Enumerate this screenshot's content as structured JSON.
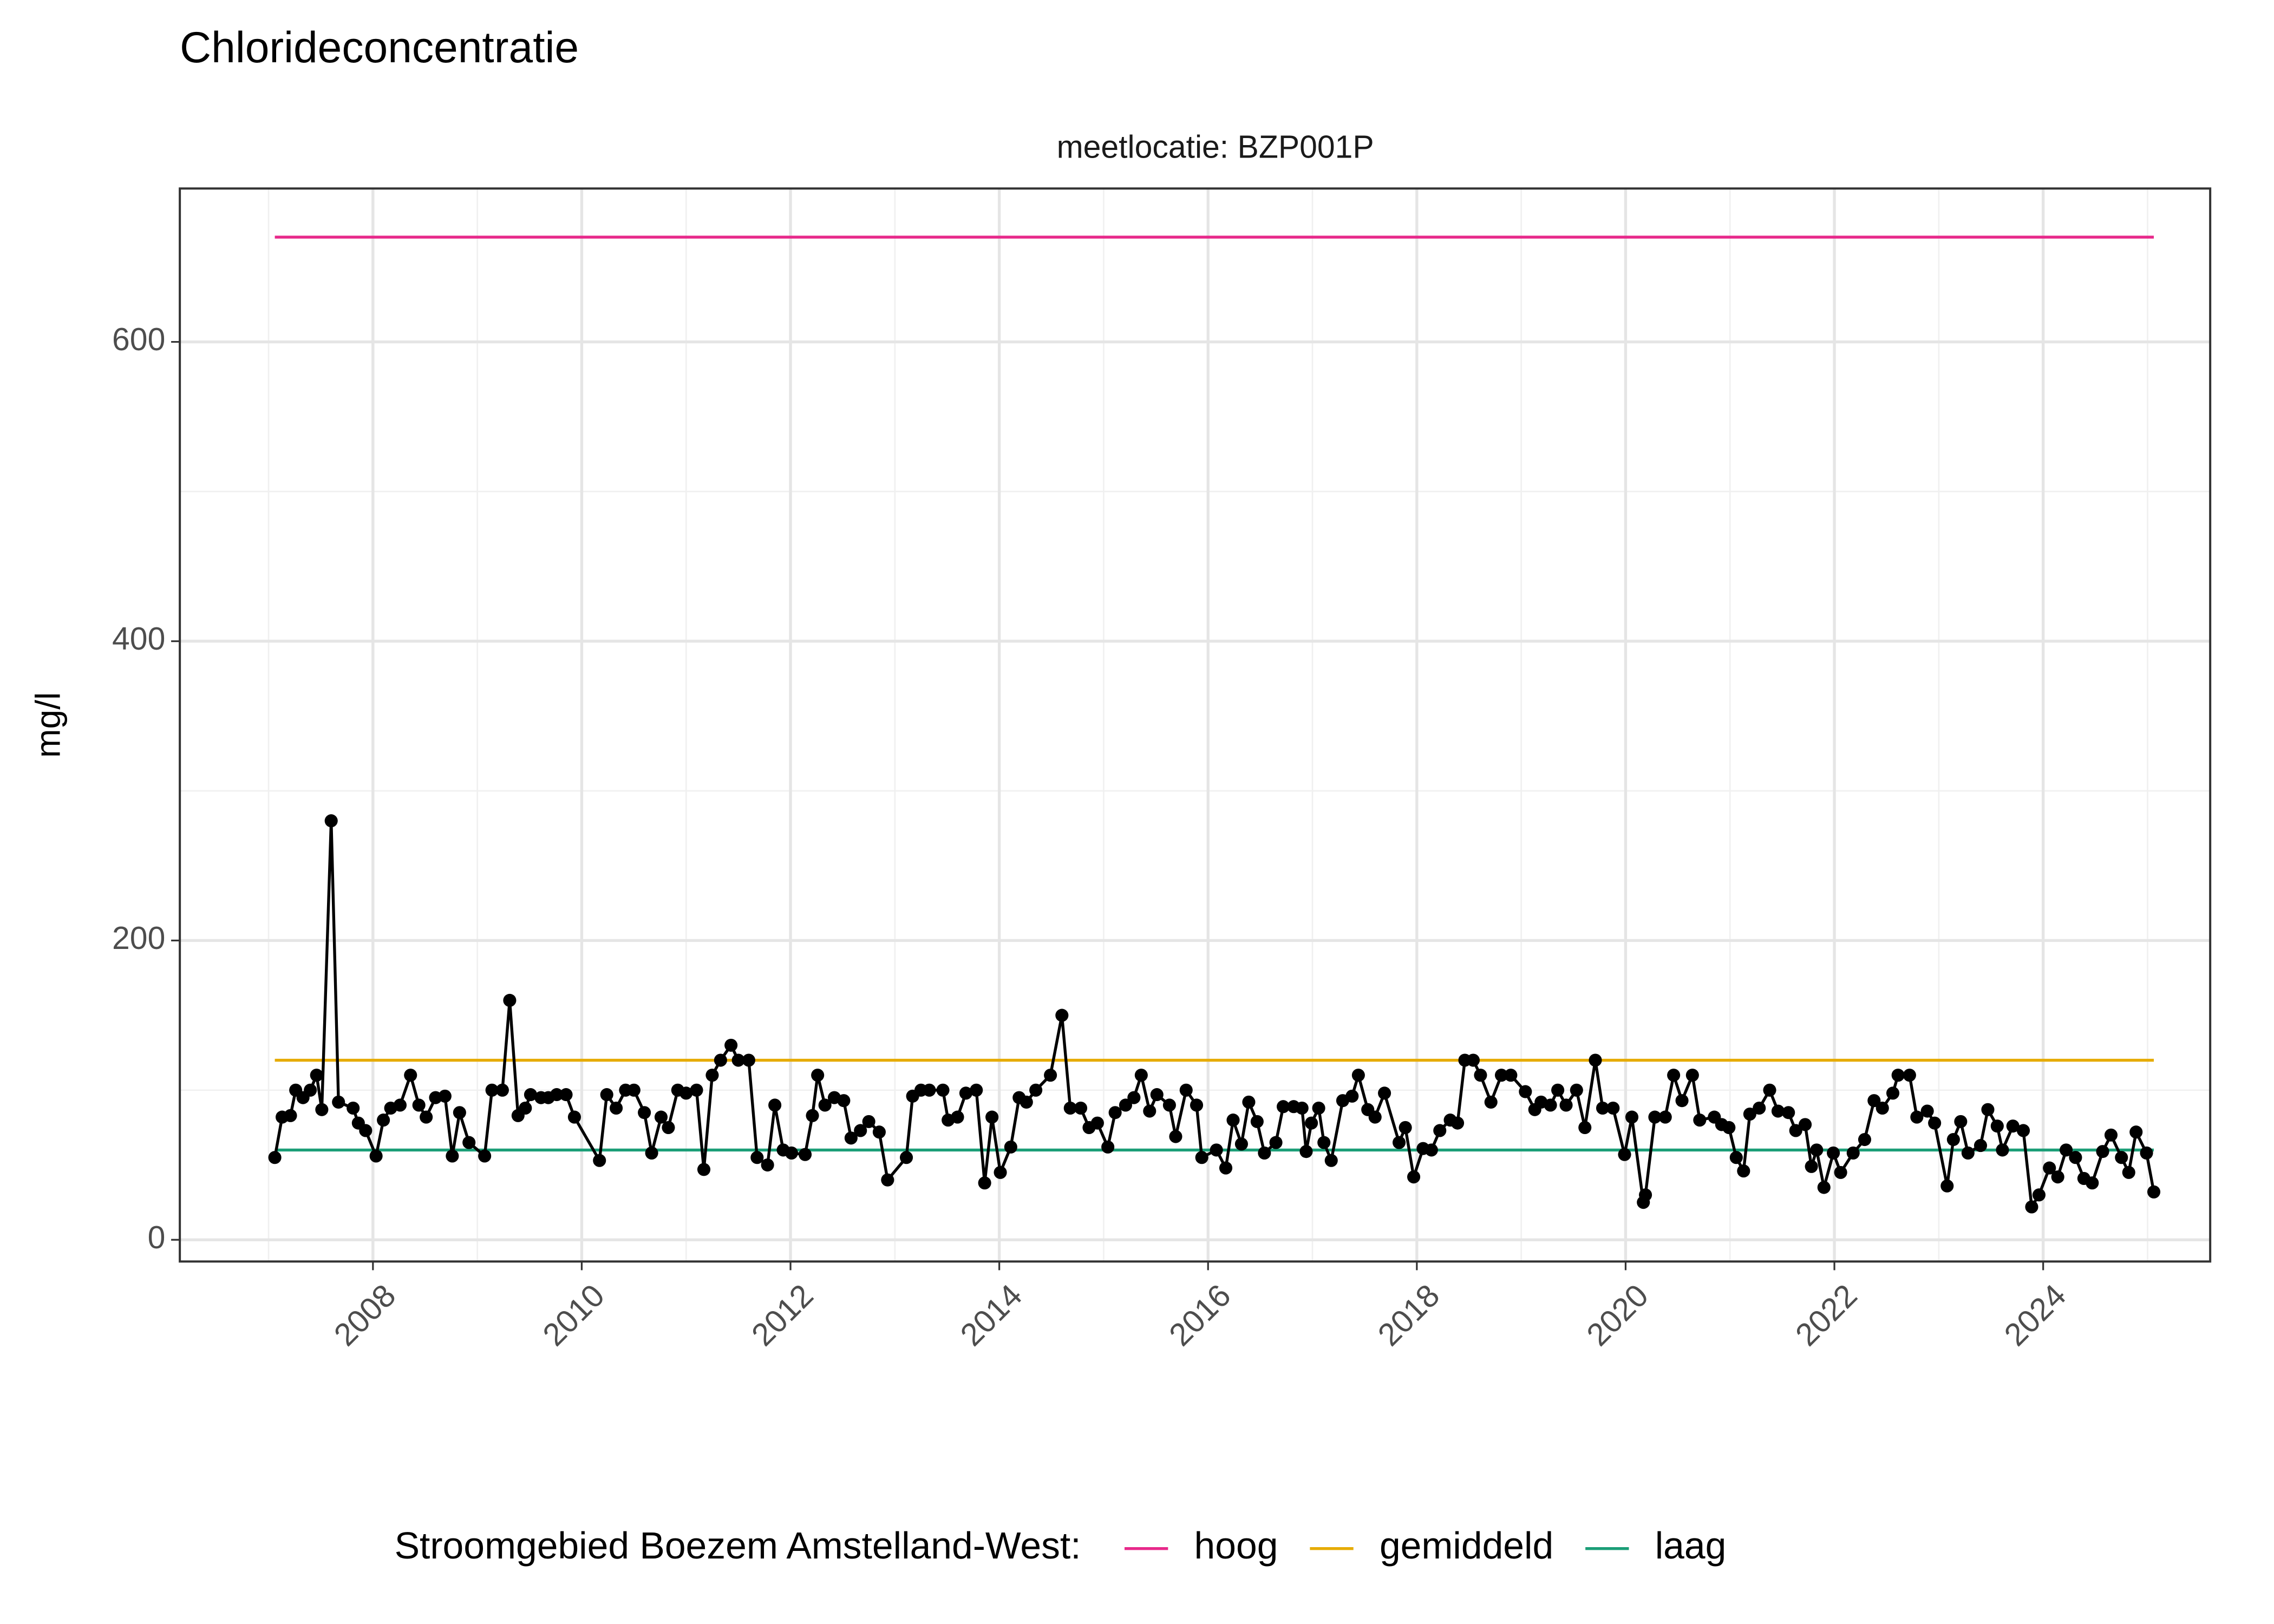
{
  "chart_data": {
    "type": "line",
    "title": "Chlorideconcentratie",
    "subtitle": "meetlocatie: BZP001P",
    "y_label": "mg/l",
    "color": "#000000",
    "x": [
      2007.06,
      2007.13,
      2007.21,
      2007.26,
      2007.33,
      2007.4,
      2007.46,
      2007.51,
      2007.6,
      2007.67,
      2007.81,
      2007.86,
      2007.93,
      2008.03,
      2008.1,
      2008.17,
      2008.26,
      2008.36,
      2008.44,
      2008.51,
      2008.6,
      2008.69,
      2008.76,
      2008.83,
      2008.92,
      2009.07,
      2009.14,
      2009.24,
      2009.31,
      2009.39,
      2009.46,
      2009.51,
      2009.61,
      2009.68,
      2009.76,
      2009.85,
      2009.93,
      2010.17,
      2010.24,
      2010.33,
      2010.42,
      2010.5,
      2010.6,
      2010.67,
      2010.76,
      2010.83,
      2010.92,
      2011.0,
      2011.1,
      2011.17,
      2011.25,
      2011.33,
      2011.43,
      2011.5,
      2011.6,
      2011.68,
      2011.78,
      2011.85,
      2011.93,
      2012.01,
      2012.14,
      2012.21,
      2012.26,
      2012.33,
      2012.42,
      2012.51,
      2012.58,
      2012.67,
      2012.75,
      2012.85,
      2012.93,
      2013.11,
      2013.17,
      2013.25,
      2013.33,
      2013.46,
      2013.51,
      2013.6,
      2013.68,
      2013.78,
      2013.86,
      2013.93,
      2014.01,
      2014.11,
      2014.19,
      2014.26,
      2014.35,
      2014.49,
      2014.6,
      2014.68,
      2014.78,
      2014.86,
      2014.94,
      2015.04,
      2015.11,
      2015.21,
      2015.29,
      2015.36,
      2015.44,
      2015.51,
      2015.63,
      2015.69,
      2015.79,
      2015.89,
      2015.94,
      2016.08,
      2016.17,
      2016.24,
      2016.32,
      2016.39,
      2016.47,
      2016.54,
      2016.65,
      2016.72,
      2016.82,
      2016.9,
      2016.94,
      2016.99,
      2017.06,
      2017.11,
      2017.18,
      2017.29,
      2017.38,
      2017.44,
      2017.53,
      2017.6,
      2017.69,
      2017.83,
      2017.89,
      2017.97,
      2018.06,
      2018.14,
      2018.22,
      2018.32,
      2018.39,
      2018.46,
      2018.54,
      2018.61,
      2018.71,
      2018.81,
      2018.9,
      2019.04,
      2019.13,
      2019.19,
      2019.28,
      2019.35,
      2019.43,
      2019.53,
      2019.61,
      2019.71,
      2019.78,
      2019.88,
      2019.99,
      2020.06,
      2020.17,
      2020.19,
      2020.28,
      2020.38,
      2020.46,
      2020.54,
      2020.64,
      2020.71,
      2020.85,
      2020.92,
      2020.99,
      2021.06,
      2021.13,
      2021.19,
      2021.28,
      2021.38,
      2021.46,
      2021.56,
      2021.63,
      2021.72,
      2021.78,
      2021.83,
      2021.9,
      2021.99,
      2022.06,
      2022.18,
      2022.29,
      2022.38,
      2022.46,
      2022.56,
      2022.61,
      2022.72,
      2022.79,
      2022.89,
      2022.96,
      2023.08,
      2023.14,
      2023.21,
      2023.28,
      2023.4,
      2023.47,
      2023.56,
      2023.61,
      2023.71,
      2023.81,
      2023.89,
      2023.96,
      2024.06,
      2024.14,
      2024.22,
      2024.31,
      2024.39,
      2024.47,
      2024.57,
      2024.65,
      2024.75,
      2024.82,
      2024.89,
      2024.99,
      2025.06
    ],
    "values": [
      55,
      82,
      83,
      100,
      95,
      100,
      110,
      87,
      280,
      92,
      88,
      78,
      73,
      56,
      80,
      88,
      90,
      110,
      90,
      82,
      95,
      96,
      56,
      85,
      65,
      56,
      100,
      100,
      160,
      83,
      88,
      97,
      95,
      95,
      97,
      97,
      82,
      53,
      97,
      88,
      100,
      100,
      85,
      58,
      82,
      75,
      100,
      98,
      100,
      47,
      110,
      120,
      130,
      120,
      120,
      55,
      50,
      90,
      60,
      58,
      57,
      83,
      110,
      90,
      95,
      93,
      68,
      73,
      79,
      72,
      40,
      55,
      96,
      100,
      100,
      100,
      80,
      82,
      98,
      100,
      38,
      82,
      45,
      62,
      95,
      92,
      100,
      110,
      150,
      88,
      88,
      75,
      78,
      62,
      85,
      90,
      95,
      110,
      86,
      97,
      90,
      69,
      100,
      90,
      55,
      60,
      48,
      80,
      64,
      92,
      79,
      58,
      65,
      89,
      89,
      88,
      59,
      78,
      88,
      65,
      53,
      93,
      96,
      110,
      87,
      82,
      98,
      65,
      75,
      42,
      61,
      60,
      73,
      80,
      78,
      120,
      120,
      110,
      92,
      110,
      110,
      99,
      87,
      92,
      90,
      100,
      90,
      100,
      75,
      120,
      88,
      88,
      57,
      82,
      25,
      30,
      82,
      82,
      110,
      93,
      110,
      80,
      82,
      77,
      75,
      55,
      46,
      84,
      88,
      100,
      86,
      85,
      73,
      77,
      49,
      60,
      35,
      58,
      45,
      58,
      67,
      93,
      88,
      98,
      110,
      110,
      82,
      86,
      78,
      36,
      67,
      79,
      58,
      63,
      87,
      76,
      60,
      76,
      73,
      22,
      30,
      48,
      42,
      60,
      55,
      41,
      38,
      59,
      70,
      55,
      45,
      72,
      58,
      32
    ],
    "reference_lines": [
      {
        "name": "hoog",
        "color": "#e7298a",
        "value": 670
      },
      {
        "name": "gemiddeld",
        "color": "#e6ab02",
        "value": 120
      },
      {
        "name": "laag",
        "color": "#1b9e77",
        "value": 60
      }
    ],
    "legend_title": "Stroomgebied Boezem Amstelland-West:",
    "legend_position": "bottom",
    "xlim": [
      2006.15,
      2025.6
    ],
    "xticks": [
      2008,
      2010,
      2012,
      2014,
      2016,
      2018,
      2020,
      2022,
      2024
    ],
    "xminor": [
      2007,
      2009,
      2011,
      2013,
      2015,
      2017,
      2019,
      2021,
      2023,
      2025
    ],
    "ylim": [
      -14.5,
      702.5
    ],
    "yticks": [
      0,
      200,
      400,
      600
    ],
    "yminor": [
      100,
      300,
      500
    ],
    "grid": true
  }
}
